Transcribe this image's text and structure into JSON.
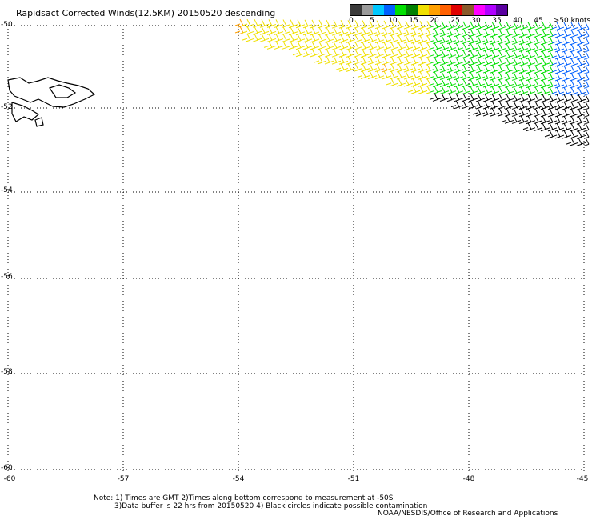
{
  "title": "Rapidsact Corrected Winds(12.5KM) 20150520 descending",
  "colorbar": {
    "colors": [
      "#3a3a3a",
      "#9a9a9a",
      "#00c8ff",
      "#0060ff",
      "#00e000",
      "#008000",
      "#f0e000",
      "#ffa000",
      "#ff6000",
      "#e00000",
      "#8a5a2a",
      "#ff00ff",
      "#b000ff",
      "#5a00a0"
    ],
    "labels": [
      "0",
      "5",
      "10",
      "15",
      "20",
      "25",
      "30",
      "35",
      "40",
      "45",
      ">50 knots"
    ]
  },
  "lat_labels": [
    "-50",
    "-52",
    "-54",
    "-56",
    "-58",
    "-60"
  ],
  "lon_labels": [
    "-60",
    "-57",
    "-54",
    "-51",
    "-48",
    "-45"
  ],
  "notes": {
    "line1": "Note: 1) Times are GMT 2)Times along bottom correspond to measurement at -50S",
    "line2": "3)Data buffer is 22 hrs from 20150520 4) Black circles indicate possible contamination"
  },
  "credit": "NOAA/NESDIS/Office of Research and Applications"
}
